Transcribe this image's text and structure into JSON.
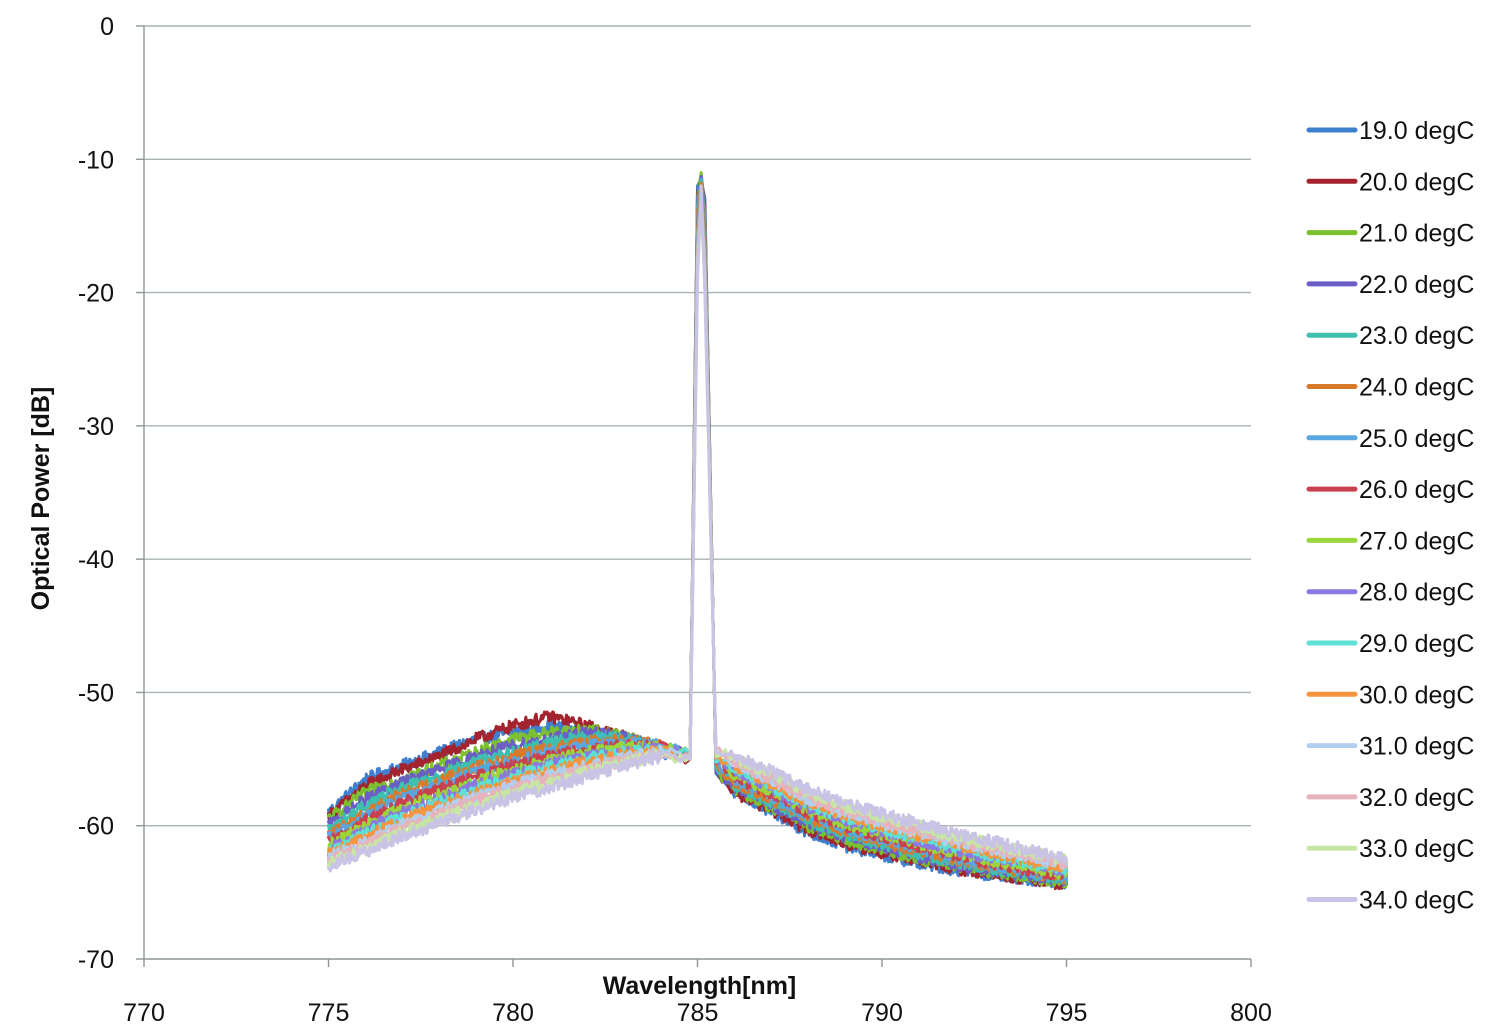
{
  "chart_data": {
    "type": "line",
    "title": "",
    "xlabel": "Wavelength[nm]",
    "ylabel": "Optical Power [dB]",
    "xlim": [
      770,
      800
    ],
    "ylim": [
      -70,
      0
    ],
    "xticks": [
      770,
      775,
      780,
      785,
      790,
      795,
      800
    ],
    "yticks": [
      0,
      -10,
      -20,
      -30,
      -40,
      -50,
      -60,
      -70
    ],
    "xtick_labels": [
      "770",
      "775",
      "780",
      "785",
      "790",
      "795",
      "800"
    ],
    "ytick_labels": [
      "0",
      "-10",
      "-20",
      "-30",
      "-40",
      "-50",
      "-60",
      "-70"
    ],
    "grid": "horizontal",
    "legend_position": "right",
    "x": [
      775,
      776,
      777,
      778,
      779,
      780,
      781,
      782,
      783,
      784,
      784.8,
      785.0,
      785.1,
      785.2,
      785.5,
      786,
      787,
      788,
      789,
      790,
      791,
      792,
      793,
      794,
      795
    ],
    "series": [
      {
        "name": "19.0 degC",
        "color": "#3f7fcf",
        "values": [
          -59.0,
          -56.5,
          -55.5,
          -54.5,
          -53.5,
          -53.0,
          -52.5,
          -53.0,
          -53.5,
          -54.5,
          -55.0,
          -12.0,
          -11.5,
          -13.0,
          -56.0,
          -57.5,
          -59.0,
          -60.5,
          -61.5,
          -62.2,
          -62.8,
          -63.3,
          -63.7,
          -64.0,
          -64.3
        ]
      },
      {
        "name": "20.0 degC",
        "color": "#a3242e",
        "values": [
          -59.3,
          -57.0,
          -55.8,
          -54.8,
          -53.5,
          -52.5,
          -51.8,
          -52.5,
          -53.3,
          -54.3,
          -55.0,
          -12.5,
          -11.2,
          -13.5,
          -56.0,
          -57.5,
          -58.8,
          -60.3,
          -61.3,
          -62.0,
          -62.6,
          -63.2,
          -63.6,
          -64.0,
          -64.4
        ]
      },
      {
        "name": "21.0 degC",
        "color": "#7cbf2f",
        "values": [
          -59.5,
          -57.5,
          -56.5,
          -55.5,
          -54.5,
          -53.5,
          -53.0,
          -52.8,
          -53.3,
          -54.2,
          -55.0,
          -12.8,
          -11.0,
          -14.0,
          -55.8,
          -57.2,
          -58.6,
          -60.0,
          -61.0,
          -61.8,
          -62.5,
          -63.0,
          -63.5,
          -63.9,
          -64.2
        ]
      },
      {
        "name": "22.0 degC",
        "color": "#6b5ec7",
        "values": [
          -60.0,
          -58.0,
          -56.8,
          -55.8,
          -54.8,
          -54.0,
          -53.5,
          -53.0,
          -53.4,
          -54.1,
          -54.8,
          -13.0,
          -11.3,
          -14.0,
          -55.8,
          -57.0,
          -58.4,
          -59.8,
          -60.8,
          -61.6,
          -62.3,
          -62.9,
          -63.4,
          -63.8,
          -64.1
        ]
      },
      {
        "name": "23.0 degC",
        "color": "#3fbfb0",
        "values": [
          -60.3,
          -58.5,
          -57.2,
          -56.2,
          -55.2,
          -54.5,
          -53.8,
          -53.3,
          -53.5,
          -54.0,
          -54.7,
          -13.5,
          -11.5,
          -14.5,
          -55.6,
          -56.9,
          -58.2,
          -59.6,
          -60.6,
          -61.4,
          -62.1,
          -62.7,
          -63.2,
          -63.6,
          -64.0
        ]
      },
      {
        "name": "24.0 degC",
        "color": "#d97a2b",
        "values": [
          -60.8,
          -59.0,
          -57.6,
          -56.6,
          -55.6,
          -54.8,
          -54.2,
          -53.7,
          -53.6,
          -54.0,
          -54.6,
          -14.0,
          -11.8,
          -15.0,
          -55.5,
          -56.7,
          -58.0,
          -59.4,
          -60.4,
          -61.2,
          -61.9,
          -62.5,
          -63.0,
          -63.5,
          -63.9
        ]
      },
      {
        "name": "25.0 degC",
        "color": "#5aa6e0",
        "values": [
          -61.0,
          -59.3,
          -58.0,
          -57.0,
          -56.0,
          -55.2,
          -54.5,
          -54.0,
          -53.8,
          -54.0,
          -54.6,
          -14.5,
          -12.0,
          -15.5,
          -55.3,
          -56.5,
          -57.8,
          -59.2,
          -60.2,
          -61.0,
          -61.7,
          -62.4,
          -62.9,
          -63.4,
          -63.8
        ]
      },
      {
        "name": "26.0 degC",
        "color": "#c9404f",
        "values": [
          -61.3,
          -59.6,
          -58.3,
          -57.3,
          -56.3,
          -55.5,
          -54.8,
          -54.3,
          -54.0,
          -54.1,
          -54.6,
          -15.0,
          -12.2,
          -16.0,
          -55.1,
          -56.3,
          -57.6,
          -59.0,
          -60.0,
          -60.8,
          -61.5,
          -62.2,
          -62.8,
          -63.3,
          -63.7
        ]
      },
      {
        "name": "27.0 degC",
        "color": "#9ad63b",
        "values": [
          -61.5,
          -60.0,
          -58.7,
          -57.7,
          -56.7,
          -55.8,
          -55.1,
          -54.5,
          -54.1,
          -54.1,
          -54.6,
          -15.5,
          -12.3,
          -16.5,
          -55.0,
          -56.1,
          -57.4,
          -58.8,
          -59.8,
          -60.6,
          -61.3,
          -62.0,
          -62.6,
          -63.1,
          -63.6
        ]
      },
      {
        "name": "28.0 degC",
        "color": "#8b78e0",
        "values": [
          -61.8,
          -60.3,
          -59.0,
          -58.0,
          -57.0,
          -56.1,
          -55.4,
          -54.8,
          -54.3,
          -54.2,
          -54.6,
          -16.0,
          -12.5,
          -17.0,
          -54.9,
          -55.9,
          -57.2,
          -58.6,
          -59.6,
          -60.4,
          -61.1,
          -61.8,
          -62.4,
          -62.9,
          -63.4
        ]
      },
      {
        "name": "29.0 degC",
        "color": "#5ee0d4",
        "values": [
          -62.0,
          -60.6,
          -59.3,
          -58.3,
          -57.3,
          -56.4,
          -55.6,
          -55.0,
          -54.5,
          -54.3,
          -54.7,
          -16.5,
          -12.7,
          -17.5,
          -54.8,
          -55.7,
          -57.0,
          -58.4,
          -59.4,
          -60.2,
          -60.9,
          -61.6,
          -62.2,
          -62.8,
          -63.3
        ]
      },
      {
        "name": "30.0 degC",
        "color": "#f5943e",
        "values": [
          -62.2,
          -60.9,
          -59.6,
          -58.6,
          -57.6,
          -56.7,
          -55.9,
          -55.2,
          -54.7,
          -54.4,
          -54.7,
          -17.0,
          -12.8,
          -18.0,
          -54.7,
          -55.5,
          -56.8,
          -58.2,
          -59.2,
          -60.0,
          -60.7,
          -61.4,
          -62.0,
          -62.6,
          -63.1
        ]
      },
      {
        "name": "31.0 degC",
        "color": "#b3cff0",
        "values": [
          -62.4,
          -61.2,
          -59.9,
          -58.9,
          -57.9,
          -57.0,
          -56.2,
          -55.5,
          -54.9,
          -54.5,
          -54.8,
          -17.5,
          -13.0,
          -18.5,
          -54.6,
          -55.3,
          -56.6,
          -58.0,
          -59.0,
          -59.8,
          -60.5,
          -61.2,
          -61.8,
          -62.4,
          -63.0
        ]
      },
      {
        "name": "32.0 degC",
        "color": "#e6b3bd",
        "values": [
          -62.6,
          -61.5,
          -60.2,
          -59.2,
          -58.2,
          -57.3,
          -56.5,
          -55.8,
          -55.1,
          -54.6,
          -54.8,
          -18.0,
          -13.2,
          -19.0,
          -54.5,
          -55.1,
          -56.4,
          -57.8,
          -58.8,
          -59.6,
          -60.3,
          -61.0,
          -61.6,
          -62.2,
          -62.8
        ]
      },
      {
        "name": "33.0 degC",
        "color": "#c7e6a6",
        "values": [
          -62.8,
          -61.8,
          -60.5,
          -59.5,
          -58.5,
          -57.6,
          -56.8,
          -56.0,
          -55.3,
          -54.7,
          -54.9,
          -18.5,
          -13.3,
          -19.5,
          -54.4,
          -54.9,
          -56.1,
          -57.5,
          -58.5,
          -59.3,
          -60.0,
          -60.8,
          -61.4,
          -62.0,
          -62.6
        ]
      },
      {
        "name": "34.0 degC",
        "color": "#c9c3e6",
        "values": [
          -63.0,
          -62.0,
          -60.8,
          -59.8,
          -58.8,
          -57.9,
          -57.1,
          -56.3,
          -55.5,
          -54.8,
          -55.0,
          -19.0,
          -12.0,
          -20.0,
          -54.3,
          -54.8,
          -55.9,
          -57.3,
          -58.3,
          -59.1,
          -59.8,
          -60.6,
          -61.2,
          -61.8,
          -62.5
        ]
      }
    ]
  }
}
